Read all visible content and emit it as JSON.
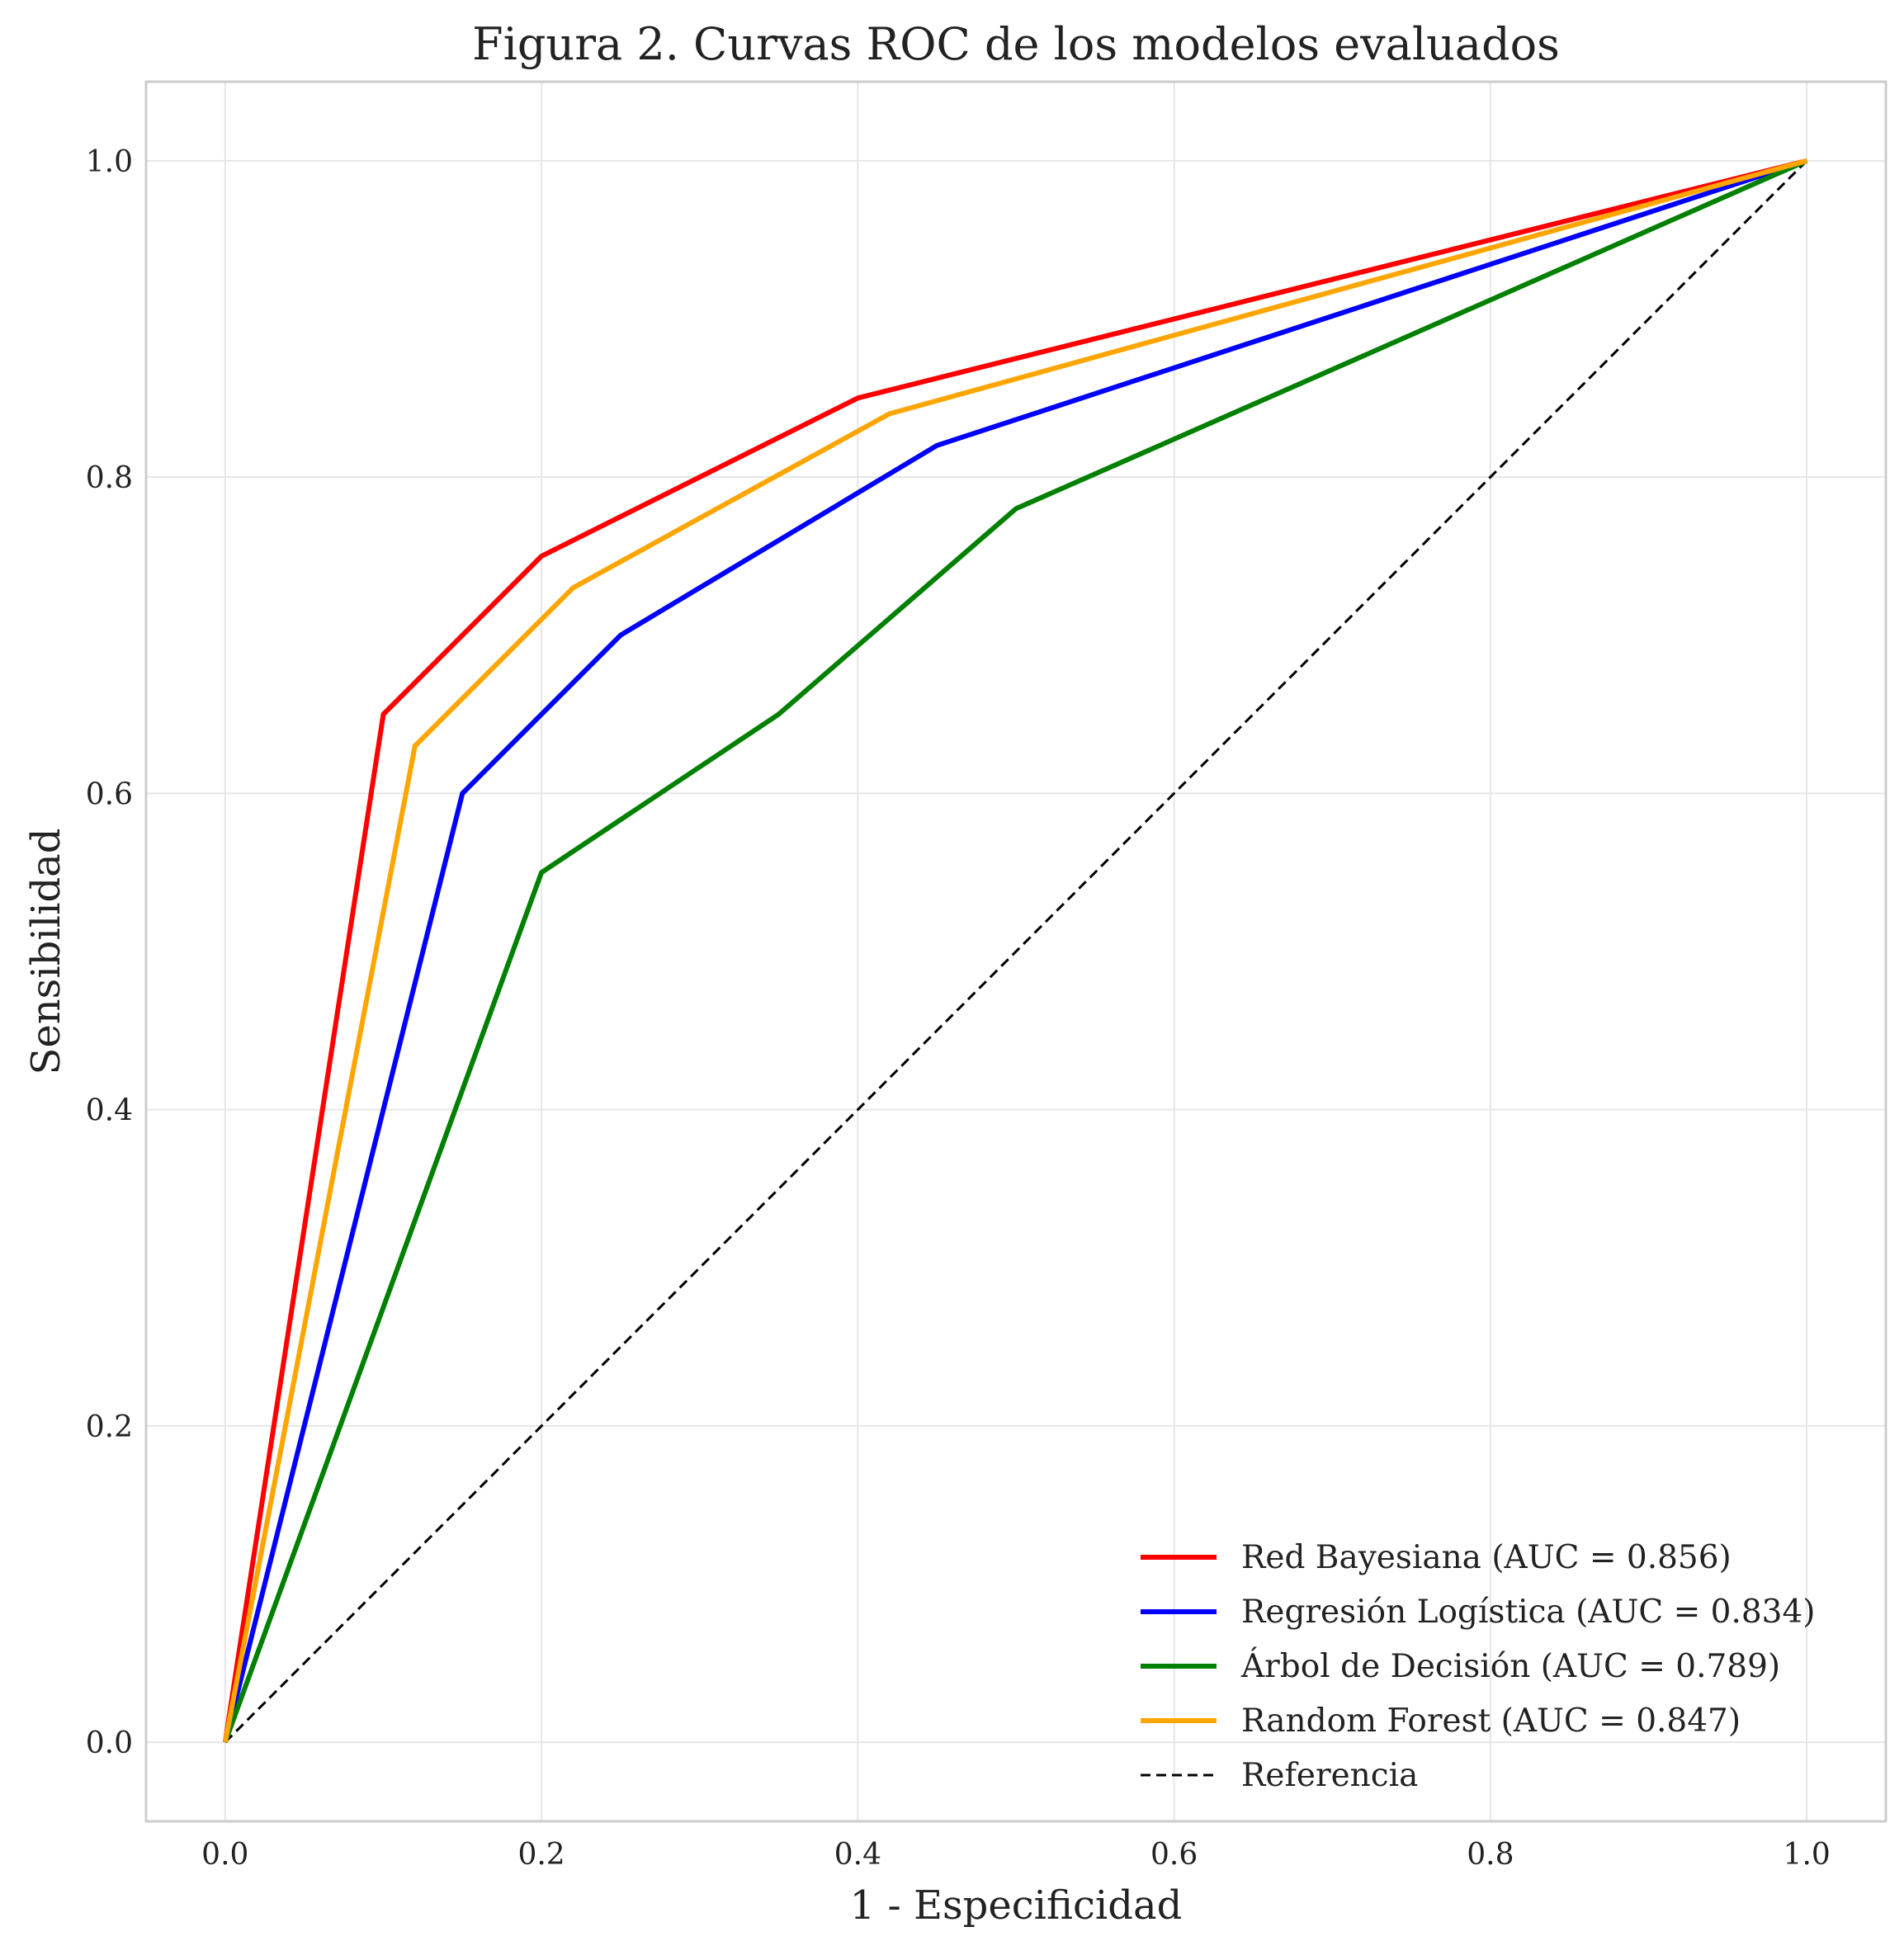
{
  "chart_data": {
    "type": "line",
    "title": "Figura 2. Curvas ROC de los modelos evaluados",
    "xlabel": "1 - Especificidad",
    "ylabel": "Sensibilidad",
    "xlim": [
      -0.05,
      1.05
    ],
    "ylim": [
      -0.05,
      1.05
    ],
    "x_ticks": [
      0.0,
      0.2,
      0.4,
      0.6,
      0.8,
      1.0
    ],
    "x_tick_labels": [
      "0.0",
      "0.2",
      "0.4",
      "0.6",
      "0.8",
      "1.0"
    ],
    "y_ticks": [
      0.0,
      0.2,
      0.4,
      0.6,
      0.8,
      1.0
    ],
    "y_tick_labels": [
      "0.0",
      "0.2",
      "0.4",
      "0.6",
      "0.8",
      "1.0"
    ],
    "grid": true,
    "legend_position": "bottom-right",
    "series": [
      {
        "name": "Red Bayesiana (AUC = 0.856)",
        "color": "#ff0000",
        "style": "solid",
        "x": [
          0.0,
          0.1,
          0.2,
          0.4,
          1.0
        ],
        "y": [
          0.0,
          0.65,
          0.75,
          0.85,
          1.0
        ]
      },
      {
        "name": "Regresión Logística (AUC = 0.834)",
        "color": "#0000ff",
        "style": "solid",
        "x": [
          0.0,
          0.15,
          0.25,
          0.45,
          1.0
        ],
        "y": [
          0.0,
          0.6,
          0.7,
          0.82,
          1.0
        ]
      },
      {
        "name": "Árbol de Decisión (AUC = 0.789)",
        "color": "#008000",
        "style": "solid",
        "x": [
          0.0,
          0.2,
          0.35,
          0.5,
          1.0
        ],
        "y": [
          0.0,
          0.55,
          0.65,
          0.78,
          1.0
        ]
      },
      {
        "name": "Random Forest (AUC = 0.847)",
        "color": "#ffa500",
        "style": "solid",
        "x": [
          0.0,
          0.12,
          0.22,
          0.42,
          1.0
        ],
        "y": [
          0.0,
          0.63,
          0.73,
          0.84,
          1.0
        ]
      },
      {
        "name": "Referencia",
        "color": "#000000",
        "style": "dashed",
        "x": [
          0.0,
          1.0
        ],
        "y": [
          0.0,
          1.0
        ]
      }
    ]
  }
}
